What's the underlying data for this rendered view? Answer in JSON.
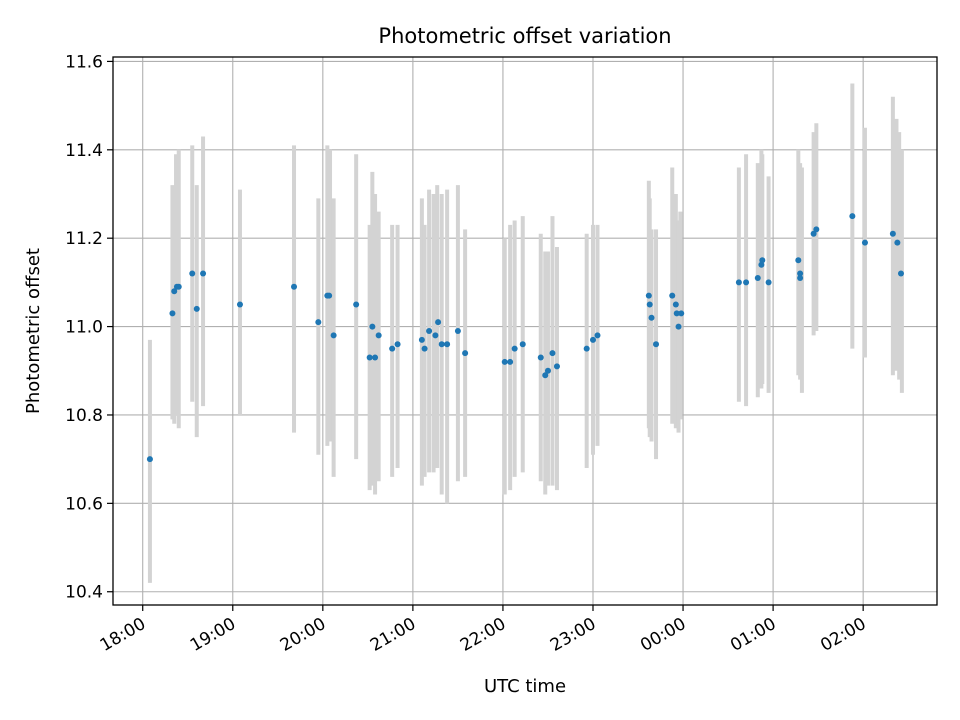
{
  "chart_data": {
    "type": "scatter",
    "title": "Photometric offset variation",
    "xlabel": "UTC time",
    "ylabel": "Photometric offset",
    "x_unit": "hours since 18:00 UTC",
    "xlim": [
      -0.33,
      8.82
    ],
    "ylim": [
      10.37,
      11.61
    ],
    "grid": true,
    "legend": "none",
    "x_ticks": [
      {
        "value": 0,
        "label": "18:00"
      },
      {
        "value": 1,
        "label": "19:00"
      },
      {
        "value": 2,
        "label": "20:00"
      },
      {
        "value": 3,
        "label": "21:00"
      },
      {
        "value": 4,
        "label": "22:00"
      },
      {
        "value": 5,
        "label": "23:00"
      },
      {
        "value": 6,
        "label": "00:00"
      },
      {
        "value": 7,
        "label": "01:00"
      },
      {
        "value": 8,
        "label": "02:00"
      }
    ],
    "y_ticks": [
      {
        "value": 10.4,
        "label": "10.4"
      },
      {
        "value": 10.6,
        "label": "10.6"
      },
      {
        "value": 10.8,
        "label": "10.8"
      },
      {
        "value": 11.0,
        "label": "11.0"
      },
      {
        "value": 11.2,
        "label": "11.2"
      },
      {
        "value": 11.4,
        "label": "11.4"
      },
      {
        "value": 11.6,
        "label": "11.6"
      }
    ],
    "point_color": "#1f77b4",
    "errorbar_color": "#d3d3d3",
    "errorbars": [
      [
        0.08,
        10.42,
        10.97
      ],
      [
        0.33,
        10.79,
        11.32
      ],
      [
        0.35,
        10.78,
        11.29
      ],
      [
        0.37,
        10.8,
        11.39
      ],
      [
        0.4,
        10.77,
        11.4
      ],
      [
        0.55,
        10.83,
        11.41
      ],
      [
        0.6,
        10.75,
        11.32
      ],
      [
        0.67,
        10.82,
        11.43
      ],
      [
        1.08,
        10.8,
        11.31
      ],
      [
        1.68,
        10.76,
        11.41
      ],
      [
        1.95,
        10.71,
        11.29
      ],
      [
        2.05,
        10.73,
        11.41
      ],
      [
        2.08,
        10.74,
        11.4
      ],
      [
        2.12,
        10.66,
        11.29
      ],
      [
        2.37,
        10.7,
        11.39
      ],
      [
        2.52,
        10.63,
        11.23
      ],
      [
        2.55,
        10.64,
        11.35
      ],
      [
        2.58,
        10.62,
        11.3
      ],
      [
        2.62,
        10.65,
        11.26
      ],
      [
        2.77,
        10.66,
        11.23
      ],
      [
        2.83,
        10.68,
        11.23
      ],
      [
        3.1,
        10.64,
        11.29
      ],
      [
        3.13,
        10.66,
        11.23
      ],
      [
        3.18,
        10.67,
        11.31
      ],
      [
        3.23,
        10.67,
        11.3
      ],
      [
        3.27,
        10.68,
        11.32
      ],
      [
        3.32,
        10.62,
        11.3
      ],
      [
        3.38,
        10.6,
        11.31
      ],
      [
        3.5,
        10.65,
        11.32
      ],
      [
        3.58,
        10.66,
        11.22
      ],
      [
        4.02,
        10.62,
        11.2
      ],
      [
        4.08,
        10.63,
        11.23
      ],
      [
        4.13,
        10.66,
        11.24
      ],
      [
        4.22,
        10.67,
        11.25
      ],
      [
        4.42,
        10.65,
        11.21
      ],
      [
        4.47,
        10.62,
        11.17
      ],
      [
        4.5,
        10.64,
        11.17
      ],
      [
        4.55,
        10.64,
        11.25
      ],
      [
        4.6,
        10.63,
        11.18
      ],
      [
        4.93,
        10.68,
        11.21
      ],
      [
        5.0,
        10.71,
        11.23
      ],
      [
        5.05,
        10.73,
        11.23
      ],
      [
        5.62,
        10.77,
        11.33
      ],
      [
        5.63,
        10.75,
        11.29
      ],
      [
        5.65,
        10.74,
        11.22
      ],
      [
        5.7,
        10.7,
        11.22
      ],
      [
        5.88,
        10.78,
        11.36
      ],
      [
        5.92,
        10.77,
        11.3
      ],
      [
        5.95,
        10.76,
        11.24
      ],
      [
        5.97,
        10.79,
        11.26
      ],
      [
        6.62,
        10.83,
        11.36
      ],
      [
        6.7,
        10.82,
        11.39
      ],
      [
        6.83,
        10.84,
        11.37
      ],
      [
        6.87,
        10.86,
        11.4
      ],
      [
        6.88,
        10.87,
        11.39
      ],
      [
        6.95,
        10.85,
        11.34
      ],
      [
        7.28,
        10.89,
        11.4
      ],
      [
        7.3,
        10.88,
        11.37
      ],
      [
        7.32,
        10.85,
        11.36
      ],
      [
        7.45,
        10.98,
        11.44
      ],
      [
        7.48,
        10.99,
        11.46
      ],
      [
        7.88,
        10.95,
        11.55
      ],
      [
        8.02,
        10.93,
        11.45
      ],
      [
        8.33,
        10.89,
        11.52
      ],
      [
        8.37,
        10.9,
        11.47
      ],
      [
        8.4,
        10.88,
        11.44
      ],
      [
        8.43,
        10.85,
        11.4
      ]
    ],
    "points": [
      [
        0.08,
        10.7
      ],
      [
        0.33,
        11.03
      ],
      [
        0.35,
        11.08
      ],
      [
        0.38,
        11.09
      ],
      [
        0.4,
        11.09
      ],
      [
        0.55,
        11.12
      ],
      [
        0.6,
        11.04
      ],
      [
        0.67,
        11.12
      ],
      [
        1.08,
        11.05
      ],
      [
        1.68,
        11.09
      ],
      [
        1.95,
        11.01
      ],
      [
        2.05,
        11.07
      ],
      [
        2.07,
        11.07
      ],
      [
        2.12,
        10.98
      ],
      [
        2.37,
        11.05
      ],
      [
        2.52,
        10.93
      ],
      [
        2.55,
        11.0
      ],
      [
        2.58,
        10.93
      ],
      [
        2.62,
        10.98
      ],
      [
        2.77,
        10.95
      ],
      [
        2.83,
        10.96
      ],
      [
        3.1,
        10.97
      ],
      [
        3.13,
        10.95
      ],
      [
        3.18,
        10.99
      ],
      [
        3.25,
        10.98
      ],
      [
        3.28,
        11.01
      ],
      [
        3.32,
        10.96
      ],
      [
        3.38,
        10.96
      ],
      [
        3.5,
        10.99
      ],
      [
        3.58,
        10.94
      ],
      [
        4.02,
        10.92
      ],
      [
        4.08,
        10.92
      ],
      [
        4.13,
        10.95
      ],
      [
        4.22,
        10.96
      ],
      [
        4.42,
        10.93
      ],
      [
        4.47,
        10.89
      ],
      [
        4.5,
        10.9
      ],
      [
        4.55,
        10.94
      ],
      [
        4.6,
        10.91
      ],
      [
        4.93,
        10.95
      ],
      [
        5.0,
        10.97
      ],
      [
        5.05,
        10.98
      ],
      [
        5.62,
        11.07
      ],
      [
        5.63,
        11.05
      ],
      [
        5.65,
        11.02
      ],
      [
        5.7,
        10.96
      ],
      [
        5.88,
        11.07
      ],
      [
        5.92,
        11.05
      ],
      [
        5.93,
        11.03
      ],
      [
        5.95,
        11.0
      ],
      [
        5.98,
        11.03
      ],
      [
        6.62,
        11.1
      ],
      [
        6.7,
        11.1
      ],
      [
        6.83,
        11.11
      ],
      [
        6.87,
        11.14
      ],
      [
        6.88,
        11.15
      ],
      [
        6.95,
        11.1
      ],
      [
        7.28,
        11.15
      ],
      [
        7.3,
        11.12
      ],
      [
        7.3,
        11.11
      ],
      [
        7.45,
        11.21
      ],
      [
        7.48,
        11.22
      ],
      [
        7.88,
        11.25
      ],
      [
        8.02,
        11.19
      ],
      [
        8.33,
        11.21
      ],
      [
        8.38,
        11.19
      ],
      [
        8.42,
        11.12
      ]
    ]
  }
}
